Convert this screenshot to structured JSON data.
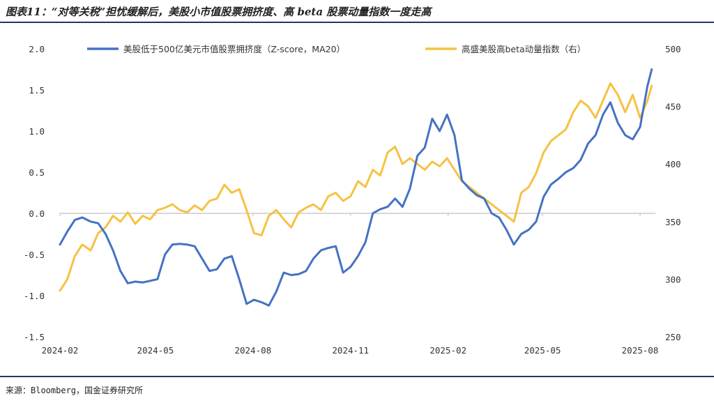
{
  "title": "图表11：“对等关税”担忧缓解后，美股小市值股票拥挤度、高 beta 股票动量指数一度走高",
  "source": "来源：Bloomberg，国金证券研究所",
  "colors": {
    "series1": "#4472c4",
    "series2": "#f5c242",
    "rule": "#1f3864",
    "axis": "#bfbfbf"
  },
  "chart_data": {
    "type": "line",
    "title": "图表11：“对等关税”担忧缓解后，美股小市值股票拥挤度、高 beta 股票动量指数一度走高",
    "x_tick_labels": [
      "2024-02",
      "2024-05",
      "2024-08",
      "2024-11",
      "2025-02",
      "2025-05",
      "2025-08"
    ],
    "y_left": {
      "ticks": [
        "2.0",
        "1.5",
        "1.0",
        "0.5",
        "0.0",
        "-0.5",
        "-1.0",
        "-1.5"
      ],
      "ylim": [
        -1.5,
        2.0
      ]
    },
    "y_right": {
      "ticks": [
        "500",
        "450",
        "400",
        "350",
        "300",
        "250"
      ],
      "ylim": [
        250,
        500
      ]
    },
    "legend_position": "top",
    "grid": false,
    "series": [
      {
        "name": "美股低于500亿美元市值股票拥挤度（Z-score，MA20）",
        "axis": "left",
        "points": [
          [
            "2024-02-01",
            -0.38
          ],
          [
            "2024-02-08",
            -0.22
          ],
          [
            "2024-02-15",
            -0.08
          ],
          [
            "2024-02-22",
            -0.05
          ],
          [
            "2024-03-01",
            -0.1
          ],
          [
            "2024-03-08",
            -0.12
          ],
          [
            "2024-03-15",
            -0.25
          ],
          [
            "2024-03-22",
            -0.45
          ],
          [
            "2024-03-29",
            -0.7
          ],
          [
            "2024-04-05",
            -0.85
          ],
          [
            "2024-04-12",
            -0.83
          ],
          [
            "2024-04-19",
            -0.84
          ],
          [
            "2024-04-26",
            -0.82
          ],
          [
            "2024-05-03",
            -0.8
          ],
          [
            "2024-05-10",
            -0.5
          ],
          [
            "2024-05-17",
            -0.38
          ],
          [
            "2024-05-24",
            -0.37
          ],
          [
            "2024-05-31",
            -0.38
          ],
          [
            "2024-06-07",
            -0.4
          ],
          [
            "2024-06-14",
            -0.55
          ],
          [
            "2024-06-21",
            -0.7
          ],
          [
            "2024-06-28",
            -0.68
          ],
          [
            "2024-07-05",
            -0.55
          ],
          [
            "2024-07-12",
            -0.52
          ],
          [
            "2024-07-19",
            -0.8
          ],
          [
            "2024-07-26",
            -1.1
          ],
          [
            "2024-08-02",
            -1.05
          ],
          [
            "2024-08-09",
            -1.08
          ],
          [
            "2024-08-16",
            -1.12
          ],
          [
            "2024-08-23",
            -0.95
          ],
          [
            "2024-08-30",
            -0.72
          ],
          [
            "2024-09-06",
            -0.75
          ],
          [
            "2024-09-13",
            -0.74
          ],
          [
            "2024-09-20",
            -0.7
          ],
          [
            "2024-09-27",
            -0.55
          ],
          [
            "2024-10-04",
            -0.45
          ],
          [
            "2024-10-11",
            -0.42
          ],
          [
            "2024-10-18",
            -0.4
          ],
          [
            "2024-10-25",
            -0.72
          ],
          [
            "2024-11-01",
            -0.65
          ],
          [
            "2024-11-08",
            -0.52
          ],
          [
            "2024-11-15",
            -0.35
          ],
          [
            "2024-11-22",
            0.0
          ],
          [
            "2024-11-29",
            0.05
          ],
          [
            "2024-12-06",
            0.08
          ],
          [
            "2024-12-13",
            0.18
          ],
          [
            "2024-12-20",
            0.08
          ],
          [
            "2024-12-27",
            0.3
          ],
          [
            "2025-01-03",
            0.7
          ],
          [
            "2025-01-10",
            0.8
          ],
          [
            "2025-01-17",
            1.15
          ],
          [
            "2025-01-24",
            1.0
          ],
          [
            "2025-01-31",
            1.2
          ],
          [
            "2025-02-07",
            0.95
          ],
          [
            "2025-02-14",
            0.4
          ],
          [
            "2025-02-21",
            0.3
          ],
          [
            "2025-02-28",
            0.22
          ],
          [
            "2025-03-07",
            0.18
          ],
          [
            "2025-03-14",
            0.0
          ],
          [
            "2025-03-21",
            -0.05
          ],
          [
            "2025-03-28",
            -0.2
          ],
          [
            "2025-04-04",
            -0.38
          ],
          [
            "2025-04-11",
            -0.25
          ],
          [
            "2025-04-18",
            -0.2
          ],
          [
            "2025-04-25",
            -0.1
          ],
          [
            "2025-05-02",
            0.2
          ],
          [
            "2025-05-09",
            0.35
          ],
          [
            "2025-05-16",
            0.42
          ],
          [
            "2025-05-23",
            0.5
          ],
          [
            "2025-05-30",
            0.55
          ],
          [
            "2025-06-06",
            0.65
          ],
          [
            "2025-06-13",
            0.85
          ],
          [
            "2025-06-20",
            0.95
          ],
          [
            "2025-06-27",
            1.2
          ],
          [
            "2025-07-04",
            1.35
          ],
          [
            "2025-07-11",
            1.1
          ],
          [
            "2025-07-18",
            0.95
          ],
          [
            "2025-07-25",
            0.9
          ],
          [
            "2025-08-01",
            1.05
          ],
          [
            "2025-08-08",
            1.55
          ],
          [
            "2025-08-12",
            1.75
          ]
        ]
      },
      {
        "name": "高盛美股高beta动量指数（右）",
        "axis": "right",
        "points": [
          [
            "2024-02-01",
            290
          ],
          [
            "2024-02-08",
            300
          ],
          [
            "2024-02-15",
            320
          ],
          [
            "2024-02-22",
            330
          ],
          [
            "2024-03-01",
            325
          ],
          [
            "2024-03-08",
            340
          ],
          [
            "2024-03-15",
            345
          ],
          [
            "2024-03-22",
            355
          ],
          [
            "2024-03-29",
            350
          ],
          [
            "2024-04-05",
            358
          ],
          [
            "2024-04-12",
            348
          ],
          [
            "2024-04-19",
            355
          ],
          [
            "2024-04-26",
            352
          ],
          [
            "2024-05-03",
            360
          ],
          [
            "2024-05-10",
            362
          ],
          [
            "2024-05-17",
            365
          ],
          [
            "2024-05-24",
            360
          ],
          [
            "2024-05-31",
            358
          ],
          [
            "2024-06-07",
            364
          ],
          [
            "2024-06-14",
            360
          ],
          [
            "2024-06-21",
            368
          ],
          [
            "2024-06-28",
            370
          ],
          [
            "2024-07-05",
            382
          ],
          [
            "2024-07-12",
            375
          ],
          [
            "2024-07-19",
            378
          ],
          [
            "2024-07-26",
            360
          ],
          [
            "2024-08-02",
            340
          ],
          [
            "2024-08-09",
            338
          ],
          [
            "2024-08-16",
            355
          ],
          [
            "2024-08-23",
            360
          ],
          [
            "2024-08-30",
            352
          ],
          [
            "2024-09-06",
            345
          ],
          [
            "2024-09-13",
            358
          ],
          [
            "2024-09-20",
            362
          ],
          [
            "2024-09-27",
            365
          ],
          [
            "2024-10-04",
            360
          ],
          [
            "2024-10-11",
            372
          ],
          [
            "2024-10-18",
            375
          ],
          [
            "2024-10-25",
            368
          ],
          [
            "2024-11-01",
            372
          ],
          [
            "2024-11-08",
            385
          ],
          [
            "2024-11-15",
            380
          ],
          [
            "2024-11-22",
            395
          ],
          [
            "2024-11-29",
            390
          ],
          [
            "2024-12-06",
            410
          ],
          [
            "2024-12-13",
            415
          ],
          [
            "2024-12-20",
            400
          ],
          [
            "2024-12-27",
            405
          ],
          [
            "2025-01-03",
            400
          ],
          [
            "2025-01-10",
            395
          ],
          [
            "2025-01-17",
            402
          ],
          [
            "2025-01-24",
            398
          ],
          [
            "2025-01-31",
            405
          ],
          [
            "2025-02-07",
            395
          ],
          [
            "2025-02-14",
            385
          ],
          [
            "2025-02-21",
            380
          ],
          [
            "2025-02-28",
            375
          ],
          [
            "2025-03-07",
            370
          ],
          [
            "2025-03-14",
            365
          ],
          [
            "2025-03-21",
            360
          ],
          [
            "2025-03-28",
            355
          ],
          [
            "2025-04-04",
            350
          ],
          [
            "2025-04-11",
            375
          ],
          [
            "2025-04-18",
            380
          ],
          [
            "2025-04-25",
            392
          ],
          [
            "2025-05-02",
            410
          ],
          [
            "2025-05-09",
            420
          ],
          [
            "2025-05-16",
            425
          ],
          [
            "2025-05-23",
            430
          ],
          [
            "2025-05-30",
            445
          ],
          [
            "2025-06-06",
            455
          ],
          [
            "2025-06-13",
            450
          ],
          [
            "2025-06-20",
            440
          ],
          [
            "2025-06-27",
            455
          ],
          [
            "2025-07-04",
            470
          ],
          [
            "2025-07-11",
            460
          ],
          [
            "2025-07-18",
            445
          ],
          [
            "2025-07-25",
            460
          ],
          [
            "2025-08-01",
            440
          ],
          [
            "2025-08-08",
            455
          ],
          [
            "2025-08-12",
            468
          ]
        ]
      }
    ]
  }
}
